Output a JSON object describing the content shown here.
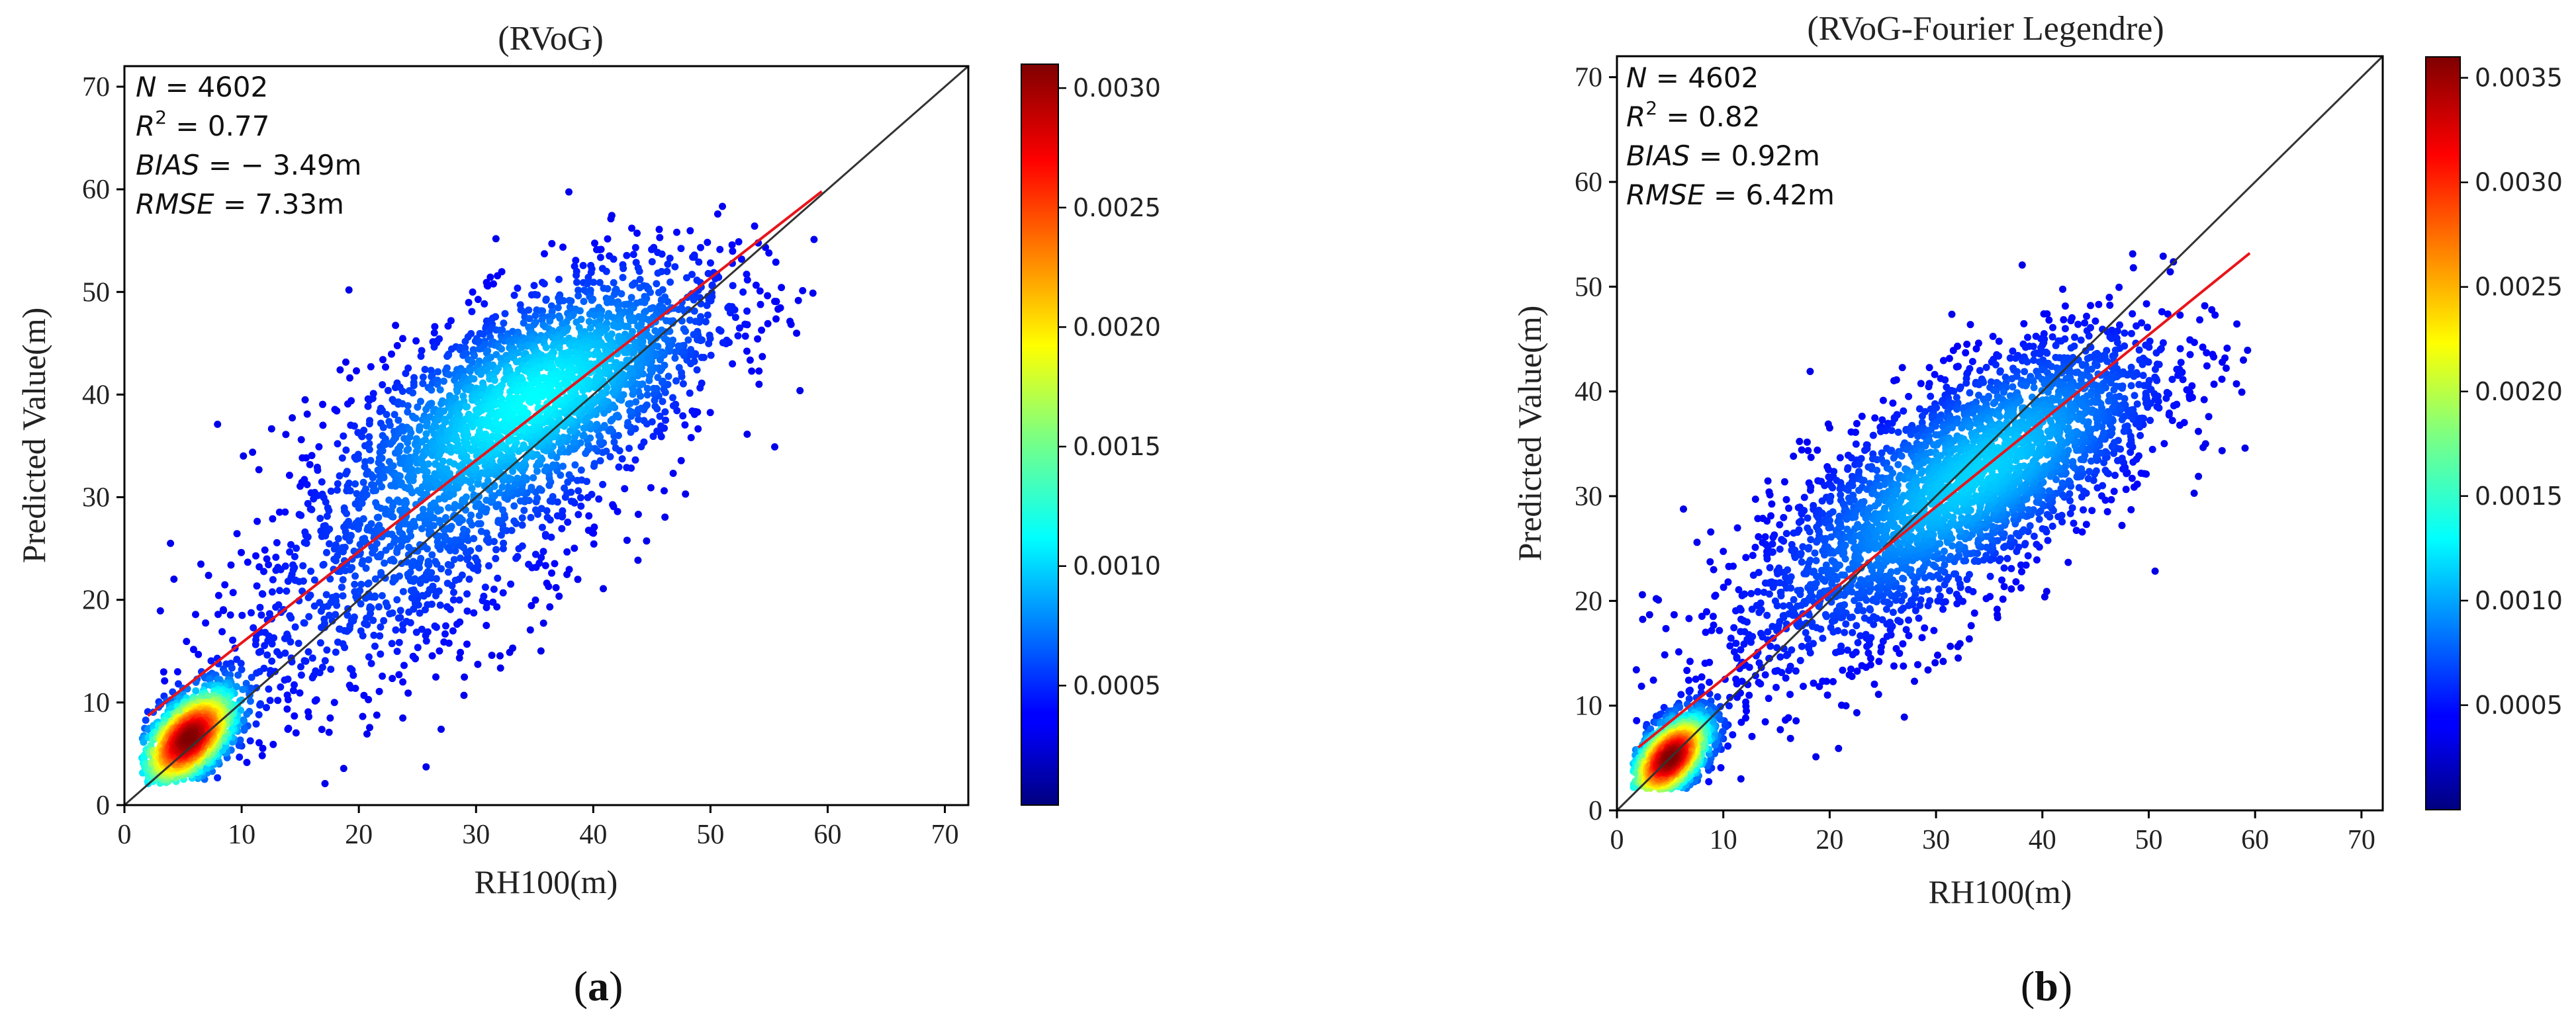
{
  "chart_data": [
    {
      "type": "scatter",
      "panel_label": "a",
      "title": "(RVoG)",
      "xlabel": "RH100(m)",
      "ylabel": "Predicted Value(m)",
      "xlim": [
        0,
        72
      ],
      "ylim": [
        0,
        72
      ],
      "xticks": [
        0,
        10,
        20,
        30,
        40,
        50,
        60,
        70
      ],
      "yticks": [
        0,
        10,
        20,
        30,
        40,
        50,
        60,
        70
      ],
      "stats": [
        {
          "name": "N",
          "sup": "",
          "eq": " = ",
          "value": "4602"
        },
        {
          "name": "R",
          "sup": "2",
          "eq": " = ",
          "value": "0.77"
        },
        {
          "name": "BIAS",
          "sup": "",
          "eq": " = ",
          "value": "− 3.49m"
        },
        {
          "name": "RMSE",
          "sup": "",
          "eq": " = ",
          "value": "7.33m"
        }
      ],
      "one_to_one_line": {
        "x": [
          0,
          72
        ],
        "y": [
          0,
          72
        ]
      },
      "fit_line": {
        "x": [
          2,
          59.5
        ],
        "y": [
          8.7,
          59.8
        ]
      },
      "density_clusters": [
        {
          "cx": 5.5,
          "cy": 6.5,
          "sx": 2.2,
          "sy": 2.6,
          "n": 1300,
          "rho": 0.55
        },
        {
          "cx": 35,
          "cy": 40,
          "sx": 8,
          "sy": 6.5,
          "n": 2300,
          "rho": 0.62
        },
        {
          "cx": 25,
          "cy": 25,
          "sx": 10,
          "sy": 9,
          "n": 1002,
          "rho": 0.7
        }
      ],
      "colorbar": {
        "min": 0,
        "max": 0.0031,
        "ticks": [
          "0.0005",
          "0.0010",
          "0.0015",
          "0.0020",
          "0.0025",
          "0.0030"
        ]
      }
    },
    {
      "type": "scatter",
      "panel_label": "b",
      "title": "(RVoG-Fourier Legendre)",
      "xlabel": "RH100(m)",
      "ylabel": "Predicted Value(m)",
      "xlim": [
        0,
        72
      ],
      "ylim": [
        0,
        72
      ],
      "xticks": [
        0,
        10,
        20,
        30,
        40,
        50,
        60,
        70
      ],
      "yticks": [
        0,
        10,
        20,
        30,
        40,
        50,
        60,
        70
      ],
      "stats": [
        {
          "name": "N",
          "sup": "",
          "eq": " = ",
          "value": "4602"
        },
        {
          "name": "R",
          "sup": "2",
          "eq": " = ",
          "value": "0.82"
        },
        {
          "name": "BIAS",
          "sup": "",
          "eq": " = ",
          "value": "0.92m"
        },
        {
          "name": "RMSE",
          "sup": "",
          "eq": " = ",
          "value": "6.42m"
        }
      ],
      "one_to_one_line": {
        "x": [
          0,
          72
        ],
        "y": [
          0,
          72
        ]
      },
      "fit_line": {
        "x": [
          2,
          59.5
        ],
        "y": [
          6.0,
          53.2
        ]
      },
      "density_clusters": [
        {
          "cx": 5,
          "cy": 5,
          "sx": 2,
          "sy": 2.2,
          "n": 1300,
          "rho": 0.55
        },
        {
          "cx": 35,
          "cy": 33,
          "sx": 8.5,
          "sy": 6.5,
          "n": 2300,
          "rho": 0.66
        },
        {
          "cx": 25,
          "cy": 25,
          "sx": 10,
          "sy": 8.5,
          "n": 1002,
          "rho": 0.72
        }
      ],
      "colorbar": {
        "min": 0,
        "max": 0.0036,
        "ticks": [
          "0.0005",
          "0.0010",
          "0.0015",
          "0.0020",
          "0.0025",
          "0.0030",
          "0.0035"
        ]
      }
    }
  ]
}
